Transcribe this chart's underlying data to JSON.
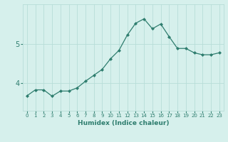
{
  "title": "",
  "xlabel": "Humidex (Indice chaleur)",
  "ylabel": "",
  "x": [
    0,
    1,
    2,
    3,
    4,
    5,
    6,
    7,
    8,
    9,
    10,
    11,
    12,
    13,
    14,
    15,
    16,
    17,
    18,
    19,
    20,
    21,
    22,
    23
  ],
  "y": [
    3.68,
    3.83,
    3.83,
    3.67,
    3.8,
    3.8,
    3.88,
    4.05,
    4.2,
    4.35,
    4.62,
    4.83,
    5.22,
    5.52,
    5.63,
    5.38,
    5.5,
    5.18,
    4.88,
    4.88,
    4.77,
    4.72,
    4.72,
    4.77
  ],
  "line_color": "#2e7d6e",
  "marker_color": "#2e7d6e",
  "bg_color": "#d6f0ec",
  "grid_color": "#b8ddd8",
  "axis_color": "#2e7d6e",
  "tick_label_color": "#2e7d6e",
  "yticks": [
    4,
    5
  ],
  "ylim": [
    3.3,
    6.0
  ],
  "xlim": [
    -0.5,
    23.5
  ],
  "figsize": [
    3.2,
    2.0
  ],
  "dpi": 100
}
